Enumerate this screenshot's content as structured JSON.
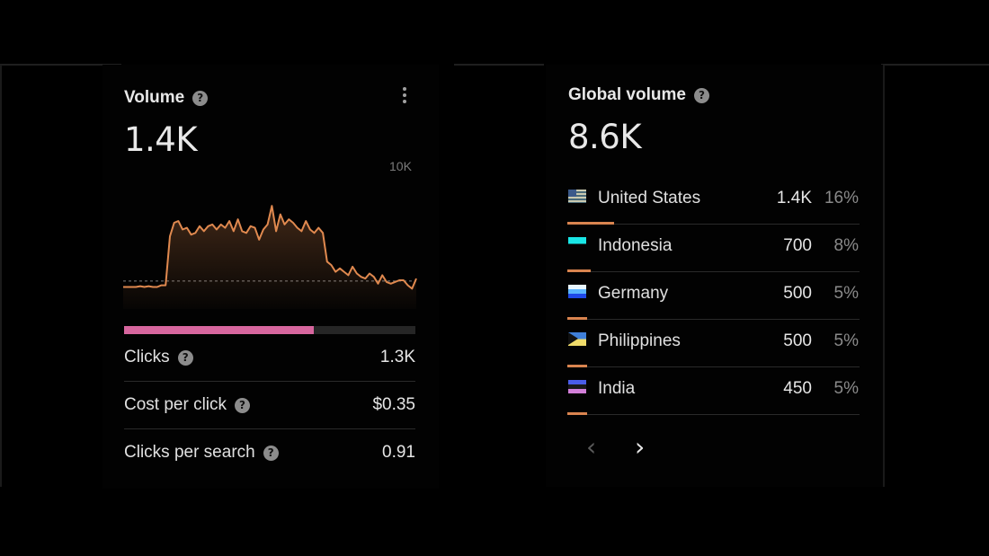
{
  "volume_card": {
    "title": "Volume",
    "value": "1.4K",
    "chart_ymax_label": "10K",
    "clicks_ratio": 0.65,
    "metrics": [
      {
        "label": "Clicks",
        "value": "1.3K"
      },
      {
        "label": "Cost per click",
        "value": "$0.35"
      },
      {
        "label": "Clicks per search",
        "value": "0.91"
      }
    ]
  },
  "chart_data": {
    "type": "area",
    "title": "",
    "ylim": [
      0,
      10000
    ],
    "y_tick_labels": [
      "10K"
    ],
    "series": [
      {
        "color": "#e0894f",
        "values": [
          1300,
          1300,
          1300,
          1300,
          1350,
          1300,
          1350,
          1300,
          1300,
          1400,
          1400,
          4300,
          5100,
          5200,
          4700,
          4800,
          4400,
          4500,
          4900,
          4600,
          4900,
          5000,
          4700,
          5000,
          4800,
          5200,
          4600,
          5300,
          4600,
          4500,
          4900,
          4800,
          4100,
          4700,
          5000,
          6100,
          4600,
          5600,
          5000,
          5300,
          5100,
          4800,
          4600,
          5200,
          4700,
          4500,
          4800,
          4500,
          2800,
          2600,
          2200,
          2400,
          2200,
          2000,
          2500,
          2100,
          1900,
          1800,
          2100,
          1900,
          1500,
          2000,
          1600,
          1500,
          1600,
          1700,
          1700,
          1400,
          1200,
          1800
        ]
      }
    ],
    "reference_line": {
      "value": 1650,
      "style": "dashed"
    }
  },
  "global_card": {
    "title": "Global volume",
    "value": "8.6K",
    "countries": [
      {
        "name": "United States",
        "value": "1.4K",
        "percent": "16%",
        "share": 0.16,
        "flag": "us-flag-icon"
      },
      {
        "name": "Indonesia",
        "value": "700",
        "percent": "8%",
        "share": 0.08,
        "flag": "id-flag-icon"
      },
      {
        "name": "Germany",
        "value": "500",
        "percent": "5%",
        "share": 0.05,
        "flag": "de-flag-icon"
      },
      {
        "name": "Philippines",
        "value": "500",
        "percent": "5%",
        "share": 0.05,
        "flag": "ph-flag-icon"
      },
      {
        "name": "India",
        "value": "450",
        "percent": "5%",
        "share": 0.05,
        "flag": "in-flag-icon"
      }
    ],
    "pagination": {
      "prev": "‹",
      "next": "›"
    }
  },
  "colors": {
    "accent_line": "#e0894f",
    "clicks_bar": "#d7669e",
    "track": "#262626"
  }
}
